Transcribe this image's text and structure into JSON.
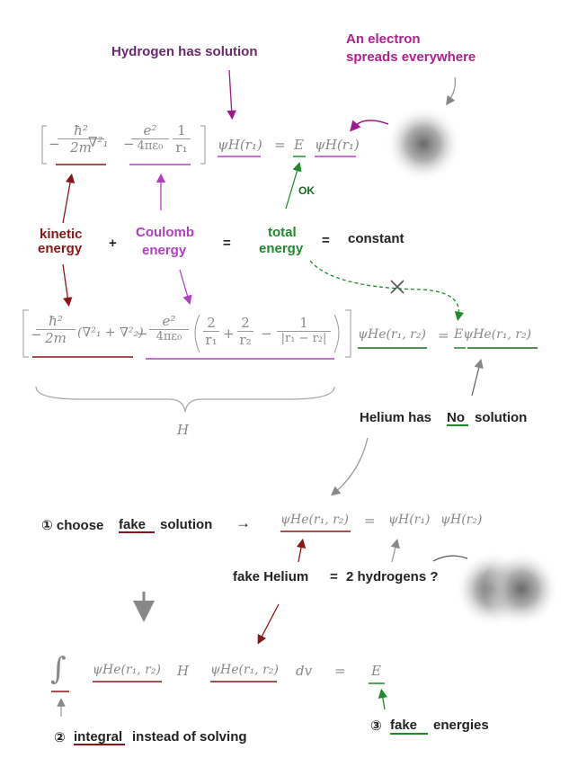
{
  "labels": {
    "hydrogen_solution": "Hydrogen  has  solution",
    "electron_line1": "An electron",
    "electron_line2": "spreads everywhere",
    "ok": "OK",
    "kinetic_line1": "kinetic",
    "kinetic_line2": "energy",
    "plus": "+",
    "coulomb_line1": "Coulomb",
    "coulomb_line2": "energy",
    "equals1": "=",
    "total_line1": "total",
    "total_line2": "energy",
    "equals2": "=",
    "constant": "constant",
    "helium_prefix": "Helium  has",
    "helium_no": "No",
    "helium_suffix": "solution",
    "step1_prefix": "① choose",
    "step1_fake": "fake",
    "step1_suffix": "solution",
    "arrow_right": "→",
    "fake_helium": "fake  Helium",
    "equals3": "=",
    "two_hydrogens": "2  hydrogens ?",
    "step2_prefix": "②",
    "step2_integral": "integral",
    "step2_suffix": "instead of solving",
    "step3_prefix": "③",
    "step3_fake": "fake",
    "step3_suffix": "energies"
  },
  "equation_hydrogen": {
    "hbar2": "ħ²",
    "two_m": "2m",
    "nabla1": "∇²₁",
    "e2": "e²",
    "four_pi_eps": "4πε₀",
    "one": "1",
    "r1": "r₁",
    "psi_h_r1": "ψH(r₁)",
    "eq": "=",
    "E": "E",
    "psi_h_r1_b": "ψH(r₁)"
  },
  "equation_helium": {
    "hbar2": "ħ²",
    "two_m": "2m",
    "nabla_sum": "(∇²₁ + ∇²₂)",
    "minus": "−",
    "e2": "e²",
    "four_pi_eps": "4πε₀",
    "two_a": "2",
    "r1": "r₁",
    "plus": "+",
    "two_b": "2",
    "r2": "r₂",
    "minus2": "−",
    "one": "1",
    "r1_minus_r2": "|r₁ − r₂|",
    "psi_he": "ψHe(r₁, r₂)",
    "eq": "=",
    "E_psi_he": "EψHe(r₁, r₂)",
    "H": "H"
  },
  "equation_fake": {
    "psi_he": "ψHe(r₁, r₂)",
    "eq": "=",
    "psi_h_r1": "ψH(r₁)",
    "psi_h_r2": "ψH(r₂)"
  },
  "equation_integral": {
    "integral": "∫",
    "psi_he_a": "ψHe(r₁, r₂)",
    "H": "H",
    "psi_he_b": "ψHe(r₁, r₂)",
    "dv": "dv",
    "eq": "=",
    "E": "E"
  },
  "colors": {
    "purple": "#6b2a6b",
    "magenta": "#b0208e",
    "violet": "#b040c0",
    "dark_red": "#8b1515",
    "green": "#1f8a2a",
    "math_gray": "#888888"
  }
}
